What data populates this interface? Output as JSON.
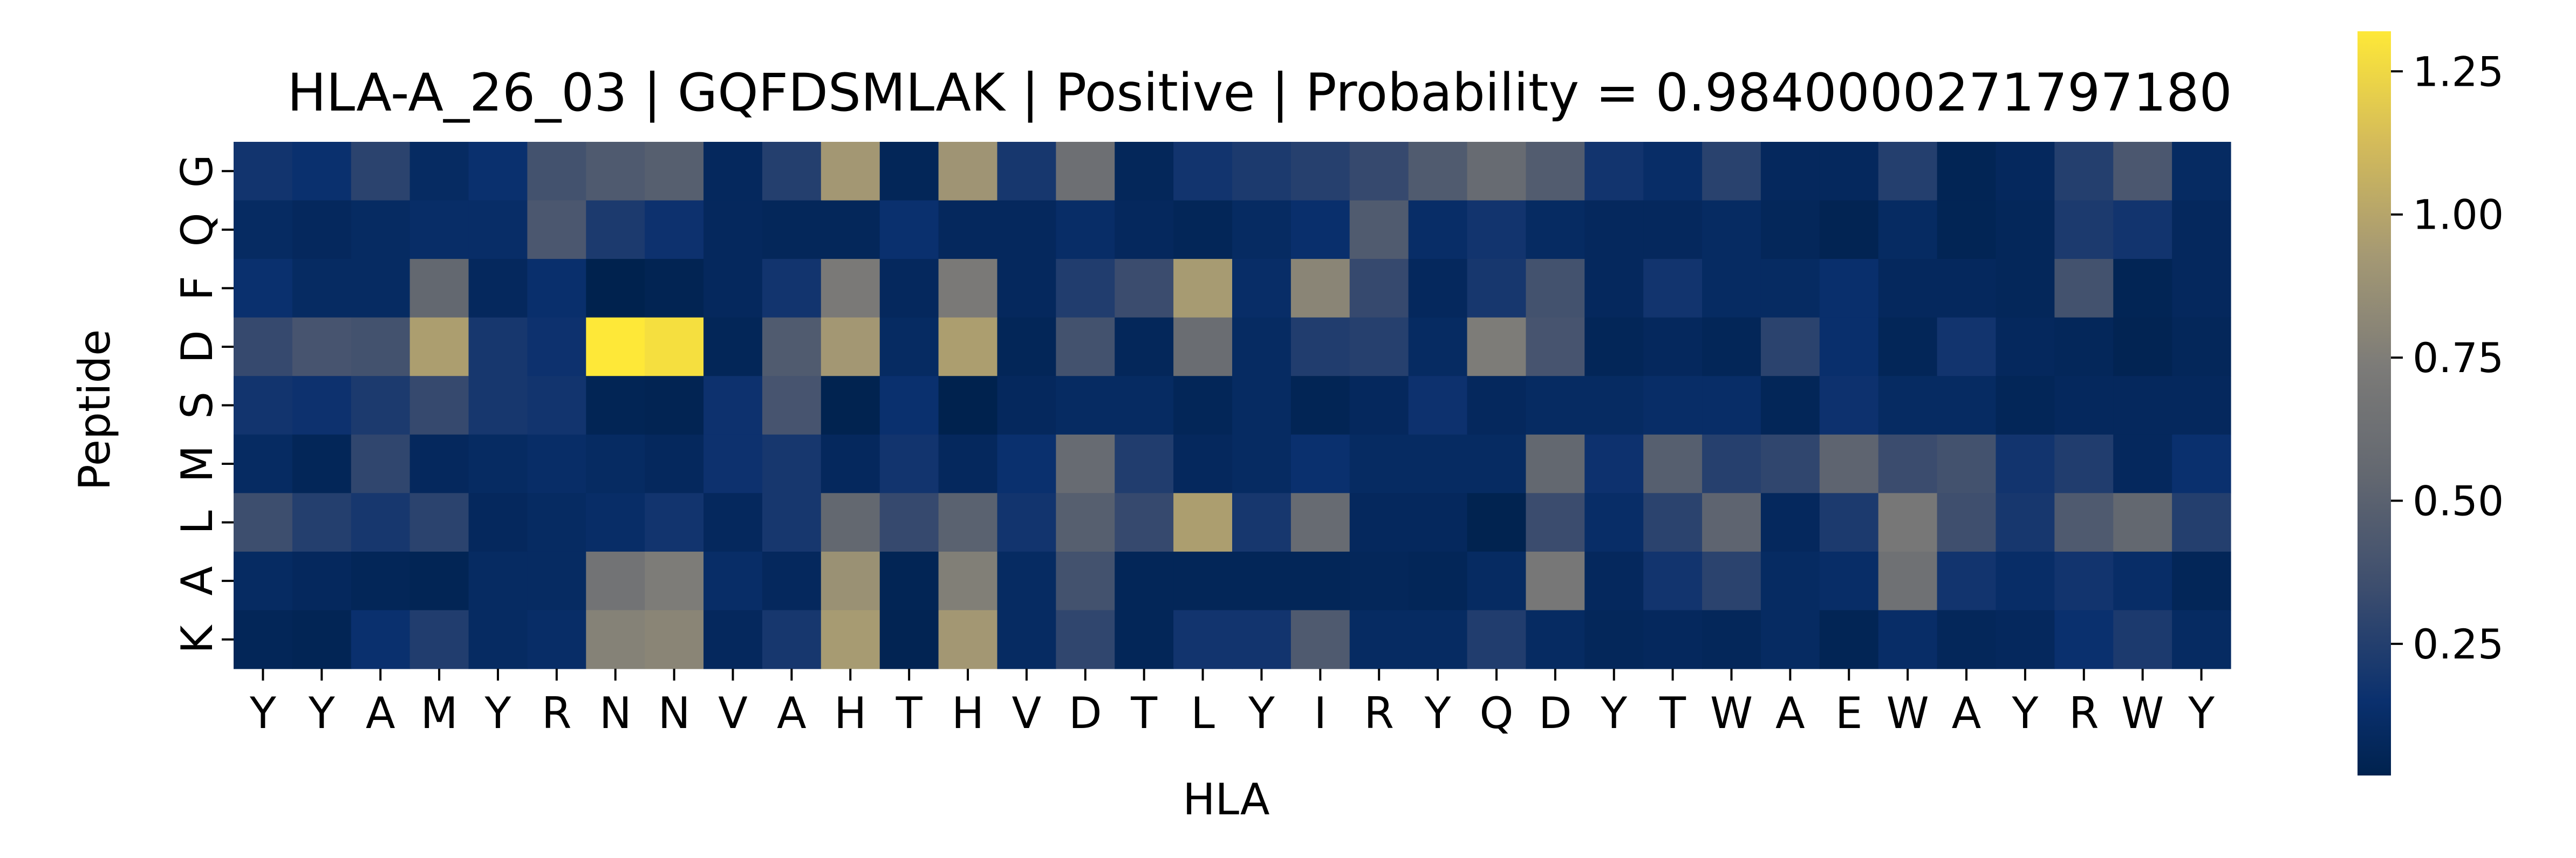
{
  "chart_data": {
    "type": "heatmap",
    "title": "HLA-A_26_03 | GQFDSMLAK | Positive | Probability = 0.9840000271797180",
    "xlabel": "HLA",
    "ylabel": "Peptide",
    "x_ticks": [
      "Y",
      "Y",
      "A",
      "M",
      "Y",
      "R",
      "N",
      "N",
      "V",
      "A",
      "H",
      "T",
      "H",
      "V",
      "D",
      "T",
      "L",
      "Y",
      "I",
      "R",
      "Y",
      "Q",
      "D",
      "Y",
      "T",
      "W",
      "A",
      "E",
      "W",
      "A",
      "Y",
      "R",
      "W",
      "Y"
    ],
    "y_ticks": [
      "G",
      "Q",
      "F",
      "D",
      "S",
      "M",
      "L",
      "A",
      "K"
    ],
    "colormap": "cividis",
    "colorbar": {
      "vmin": 0.02,
      "vmax": 1.32,
      "ticks": [
        0.25,
        0.5,
        0.75,
        1.0,
        1.25
      ],
      "tick_labels": [
        "0.25",
        "0.50",
        "0.75",
        "1.00",
        "1.25"
      ]
    },
    "values": [
      [
        0.18,
        0.15,
        0.28,
        0.1,
        0.15,
        0.38,
        0.44,
        0.48,
        0.08,
        0.25,
        0.92,
        0.06,
        0.9,
        0.2,
        0.62,
        0.07,
        0.18,
        0.22,
        0.26,
        0.32,
        0.45,
        0.58,
        0.46,
        0.18,
        0.12,
        0.27,
        0.08,
        0.08,
        0.25,
        0.05,
        0.08,
        0.25,
        0.42,
        0.1
      ],
      [
        0.1,
        0.08,
        0.1,
        0.12,
        0.12,
        0.42,
        0.22,
        0.16,
        0.08,
        0.07,
        0.07,
        0.15,
        0.08,
        0.08,
        0.12,
        0.08,
        0.06,
        0.1,
        0.14,
        0.45,
        0.12,
        0.18,
        0.1,
        0.08,
        0.08,
        0.1,
        0.07,
        0.04,
        0.1,
        0.05,
        0.07,
        0.22,
        0.18,
        0.08
      ],
      [
        0.15,
        0.1,
        0.1,
        0.55,
        0.08,
        0.14,
        0.02,
        0.04,
        0.08,
        0.18,
        0.72,
        0.08,
        0.72,
        0.08,
        0.24,
        0.34,
        0.94,
        0.12,
        0.8,
        0.32,
        0.08,
        0.2,
        0.38,
        0.08,
        0.18,
        0.1,
        0.1,
        0.14,
        0.08,
        0.08,
        0.07,
        0.38,
        0.05,
        0.08
      ],
      [
        0.32,
        0.4,
        0.38,
        0.96,
        0.2,
        0.16,
        1.32,
        1.28,
        0.06,
        0.45,
        0.92,
        0.1,
        0.96,
        0.06,
        0.38,
        0.07,
        0.6,
        0.1,
        0.24,
        0.26,
        0.1,
        0.74,
        0.4,
        0.06,
        0.08,
        0.06,
        0.28,
        0.14,
        0.06,
        0.18,
        0.08,
        0.07,
        0.04,
        0.07
      ],
      [
        0.18,
        0.16,
        0.22,
        0.32,
        0.2,
        0.18,
        0.05,
        0.04,
        0.16,
        0.4,
        0.03,
        0.15,
        0.02,
        0.08,
        0.1,
        0.1,
        0.06,
        0.1,
        0.05,
        0.08,
        0.16,
        0.08,
        0.1,
        0.1,
        0.12,
        0.12,
        0.06,
        0.16,
        0.1,
        0.1,
        0.06,
        0.08,
        0.08,
        0.08
      ],
      [
        0.1,
        0.06,
        0.3,
        0.08,
        0.1,
        0.12,
        0.1,
        0.08,
        0.16,
        0.2,
        0.08,
        0.18,
        0.08,
        0.15,
        0.58,
        0.24,
        0.08,
        0.1,
        0.15,
        0.1,
        0.1,
        0.1,
        0.55,
        0.16,
        0.48,
        0.26,
        0.3,
        0.52,
        0.34,
        0.38,
        0.18,
        0.24,
        0.08,
        0.15
      ],
      [
        0.35,
        0.25,
        0.2,
        0.28,
        0.08,
        0.1,
        0.12,
        0.18,
        0.08,
        0.2,
        0.55,
        0.32,
        0.5,
        0.18,
        0.48,
        0.32,
        0.96,
        0.2,
        0.58,
        0.08,
        0.08,
        0.03,
        0.34,
        0.12,
        0.28,
        0.52,
        0.08,
        0.22,
        0.7,
        0.36,
        0.2,
        0.44,
        0.55,
        0.25
      ],
      [
        0.1,
        0.08,
        0.06,
        0.05,
        0.1,
        0.1,
        0.66,
        0.74,
        0.12,
        0.08,
        0.88,
        0.05,
        0.76,
        0.1,
        0.38,
        0.06,
        0.06,
        0.06,
        0.06,
        0.07,
        0.06,
        0.1,
        0.7,
        0.08,
        0.18,
        0.28,
        0.1,
        0.12,
        0.64,
        0.18,
        0.12,
        0.18,
        0.12,
        0.06
      ],
      [
        0.06,
        0.05,
        0.15,
        0.24,
        0.1,
        0.12,
        0.78,
        0.8,
        0.08,
        0.2,
        0.94,
        0.04,
        0.92,
        0.1,
        0.3,
        0.06,
        0.18,
        0.18,
        0.44,
        0.1,
        0.1,
        0.24,
        0.1,
        0.07,
        0.08,
        0.07,
        0.1,
        0.05,
        0.12,
        0.07,
        0.08,
        0.15,
        0.22,
        0.1
      ]
    ]
  }
}
